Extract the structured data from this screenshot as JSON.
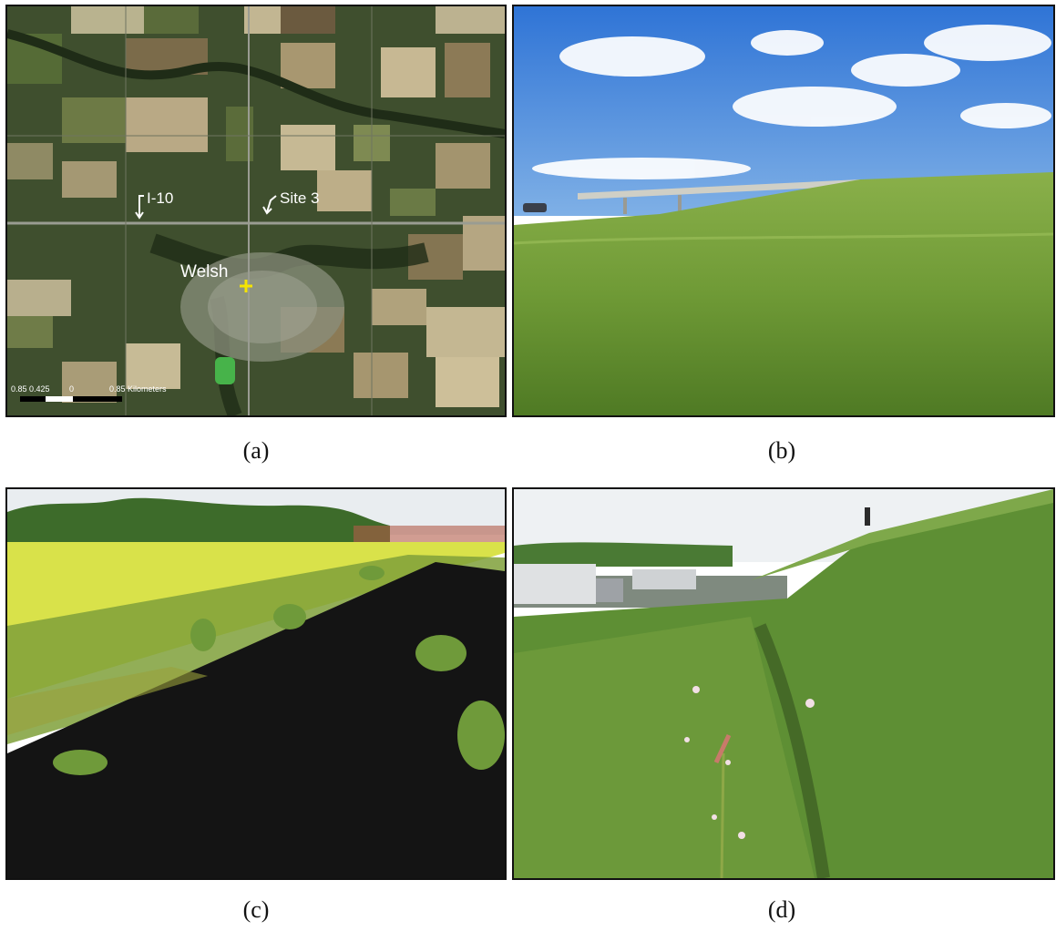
{
  "panels": [
    {
      "id": "a",
      "kind": "satellite-map",
      "caption": "(a)",
      "labels": {
        "highway": "I-10",
        "site": "Site 3",
        "town": "Welsh"
      },
      "scale_bar": {
        "tick_left": "0.85",
        "tick_mid": "0.425",
        "tick_zero": "0",
        "tick_right": "0.85 Kilometers"
      },
      "marker_color": "#f5e400"
    },
    {
      "id": "b",
      "kind": "photo-grass-embankment-overpass",
      "caption": "(b)"
    },
    {
      "id": "c",
      "kind": "photo-blackened-burned-slope",
      "caption": "(c)"
    },
    {
      "id": "d",
      "kind": "photo-grass-slope-highway-trucks",
      "caption": "(d)"
    }
  ]
}
